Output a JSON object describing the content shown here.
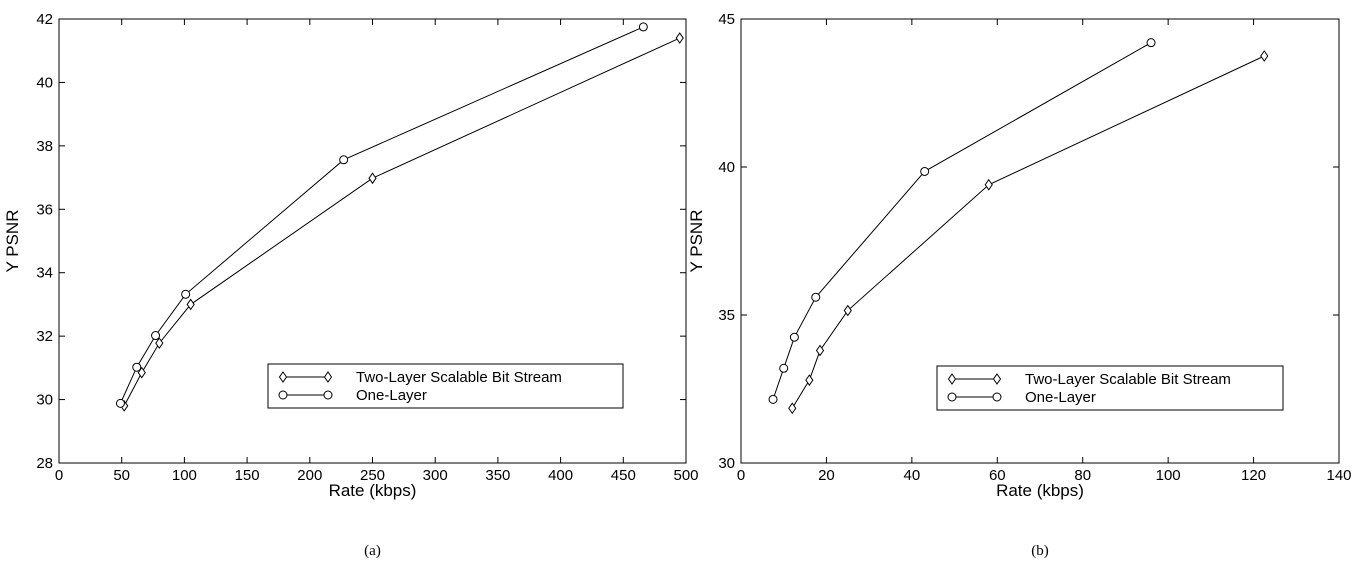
{
  "chart_data": [
    {
      "type": "line",
      "caption": "(a)",
      "xlabel": "Rate (kbps)",
      "ylabel": "Y PSNR",
      "xlim": [
        0,
        500
      ],
      "ylim": [
        28,
        42
      ],
      "xticks": [
        0,
        50,
        100,
        150,
        200,
        250,
        300,
        350,
        400,
        450,
        500
      ],
      "yticks": [
        28,
        30,
        32,
        34,
        36,
        38,
        40,
        42
      ],
      "grid": false,
      "legend_position": "center-right",
      "series": [
        {
          "name": "Two-Layer Scalable Bit Stream",
          "marker": "diamond",
          "x": [
            52,
            66,
            80,
            105,
            250,
            495
          ],
          "y": [
            29.8,
            30.85,
            31.78,
            33.0,
            36.98,
            41.4
          ]
        },
        {
          "name": "One-Layer",
          "marker": "circle",
          "x": [
            49,
            62,
            77,
            101,
            227,
            466
          ],
          "y": [
            29.88,
            31.02,
            32.02,
            33.32,
            37.56,
            41.75
          ]
        }
      ]
    },
    {
      "type": "line",
      "caption": "(b)",
      "xlabel": "Rate (kbps)",
      "ylabel": "Y PSNR",
      "xlim": [
        0,
        140
      ],
      "ylim": [
        30,
        45
      ],
      "xticks": [
        0,
        20,
        40,
        60,
        80,
        100,
        120,
        140
      ],
      "yticks": [
        30,
        35,
        40,
        45
      ],
      "grid": false,
      "legend_position": "center-right",
      "series": [
        {
          "name": "Two-Layer Scalable Bit Stream",
          "marker": "diamond",
          "x": [
            12,
            16,
            18.5,
            25,
            58,
            122.5
          ],
          "y": [
            31.85,
            32.8,
            33.8,
            35.15,
            39.4,
            43.75
          ]
        },
        {
          "name": "One-Layer",
          "marker": "circle",
          "x": [
            7.5,
            10,
            12.5,
            17.5,
            43,
            96
          ],
          "y": [
            32.15,
            33.2,
            34.25,
            35.6,
            39.85,
            44.2
          ]
        }
      ]
    }
  ]
}
